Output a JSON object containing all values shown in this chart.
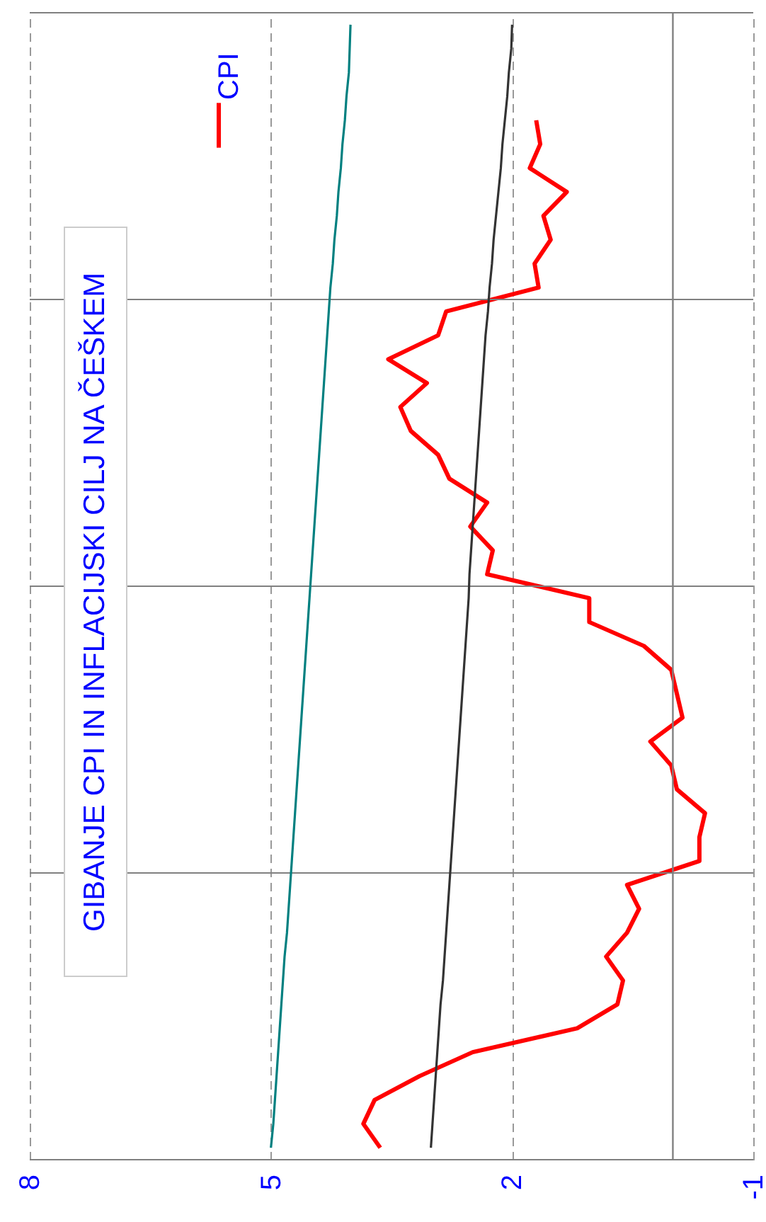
{
  "chart_data": {
    "type": "line",
    "orientation": "horizontal",
    "title": "GIBANJE CPI IN INFLACIJSKI CILJ NA ČEŠKEM",
    "categories": [
      null,
      null,
      null,
      null,
      null,
      null,
      null,
      null,
      null,
      null,
      null,
      null,
      null,
      null,
      null,
      null,
      null,
      null,
      null,
      null,
      null,
      null,
      null,
      null,
      null,
      null,
      null,
      null,
      null,
      null,
      null,
      null,
      null,
      null,
      null,
      null,
      null,
      null,
      null,
      null,
      null,
      null,
      null,
      null,
      null,
      null,
      null,
      null
    ],
    "xlim": [
      8,
      -1
    ],
    "xticks": [
      8,
      5,
      2,
      -1
    ],
    "grid": true,
    "legend": "top left",
    "line_style": "solid",
    "ref_lines": [
      {
        "axis": "x",
        "value": 0,
        "color": "#808080"
      }
    ],
    "series": [
      {
        "name": "CPI",
        "color": "#ff0000",
        "values": [
          null,
          null,
          null,
          null,
          1.7,
          1.65,
          1.78,
          1.32,
          1.61,
          1.52,
          1.72,
          1.67,
          2.82,
          2.92,
          3.54,
          3.06,
          3.39,
          3.26,
          2.92,
          2.78,
          2.31,
          2.52,
          2.24,
          2.31,
          1.04,
          1.04,
          0.36,
          0.02,
          -0.05,
          -0.12,
          0.28,
          0.02,
          -0.05,
          -0.4,
          -0.33,
          -0.33,
          0.57,
          0.42,
          0.57,
          0.83,
          0.62,
          0.69,
          1.19,
          2.49,
          3.15,
          3.71,
          3.85,
          3.64
        ]
      },
      {
        "color": "#008080",
        "values": [
          4.01,
          4.02,
          4.03,
          4.06,
          4.08,
          4.11,
          4.13,
          4.16,
          4.18,
          4.21,
          4.23,
          4.26,
          4.28,
          4.3,
          4.32,
          4.34,
          4.36,
          4.38,
          4.4,
          4.42,
          4.44,
          4.46,
          4.48,
          4.5,
          4.52,
          4.54,
          4.56,
          4.58,
          4.6,
          4.62,
          4.64,
          4.66,
          4.68,
          4.7,
          4.72,
          4.74,
          4.76,
          4.78,
          4.8,
          4.83,
          4.85,
          4.87,
          4.89,
          4.91,
          4.93,
          4.95,
          4.97,
          5.0
        ]
      },
      {
        "color": "#333333",
        "values": [
          2.0,
          2.01,
          2.04,
          2.06,
          2.09,
          2.12,
          2.14,
          2.17,
          2.2,
          2.23,
          2.25,
          2.28,
          2.3,
          2.33,
          2.35,
          2.37,
          2.39,
          2.41,
          2.43,
          2.45,
          2.47,
          2.49,
          2.51,
          2.53,
          2.54,
          2.56,
          2.58,
          2.6,
          2.62,
          2.64,
          2.66,
          2.68,
          2.7,
          2.72,
          2.74,
          2.76,
          2.78,
          2.8,
          2.82,
          2.84,
          2.86,
          2.89,
          2.91,
          2.93,
          2.95,
          2.97,
          2.99,
          3.01
        ]
      }
    ]
  }
}
